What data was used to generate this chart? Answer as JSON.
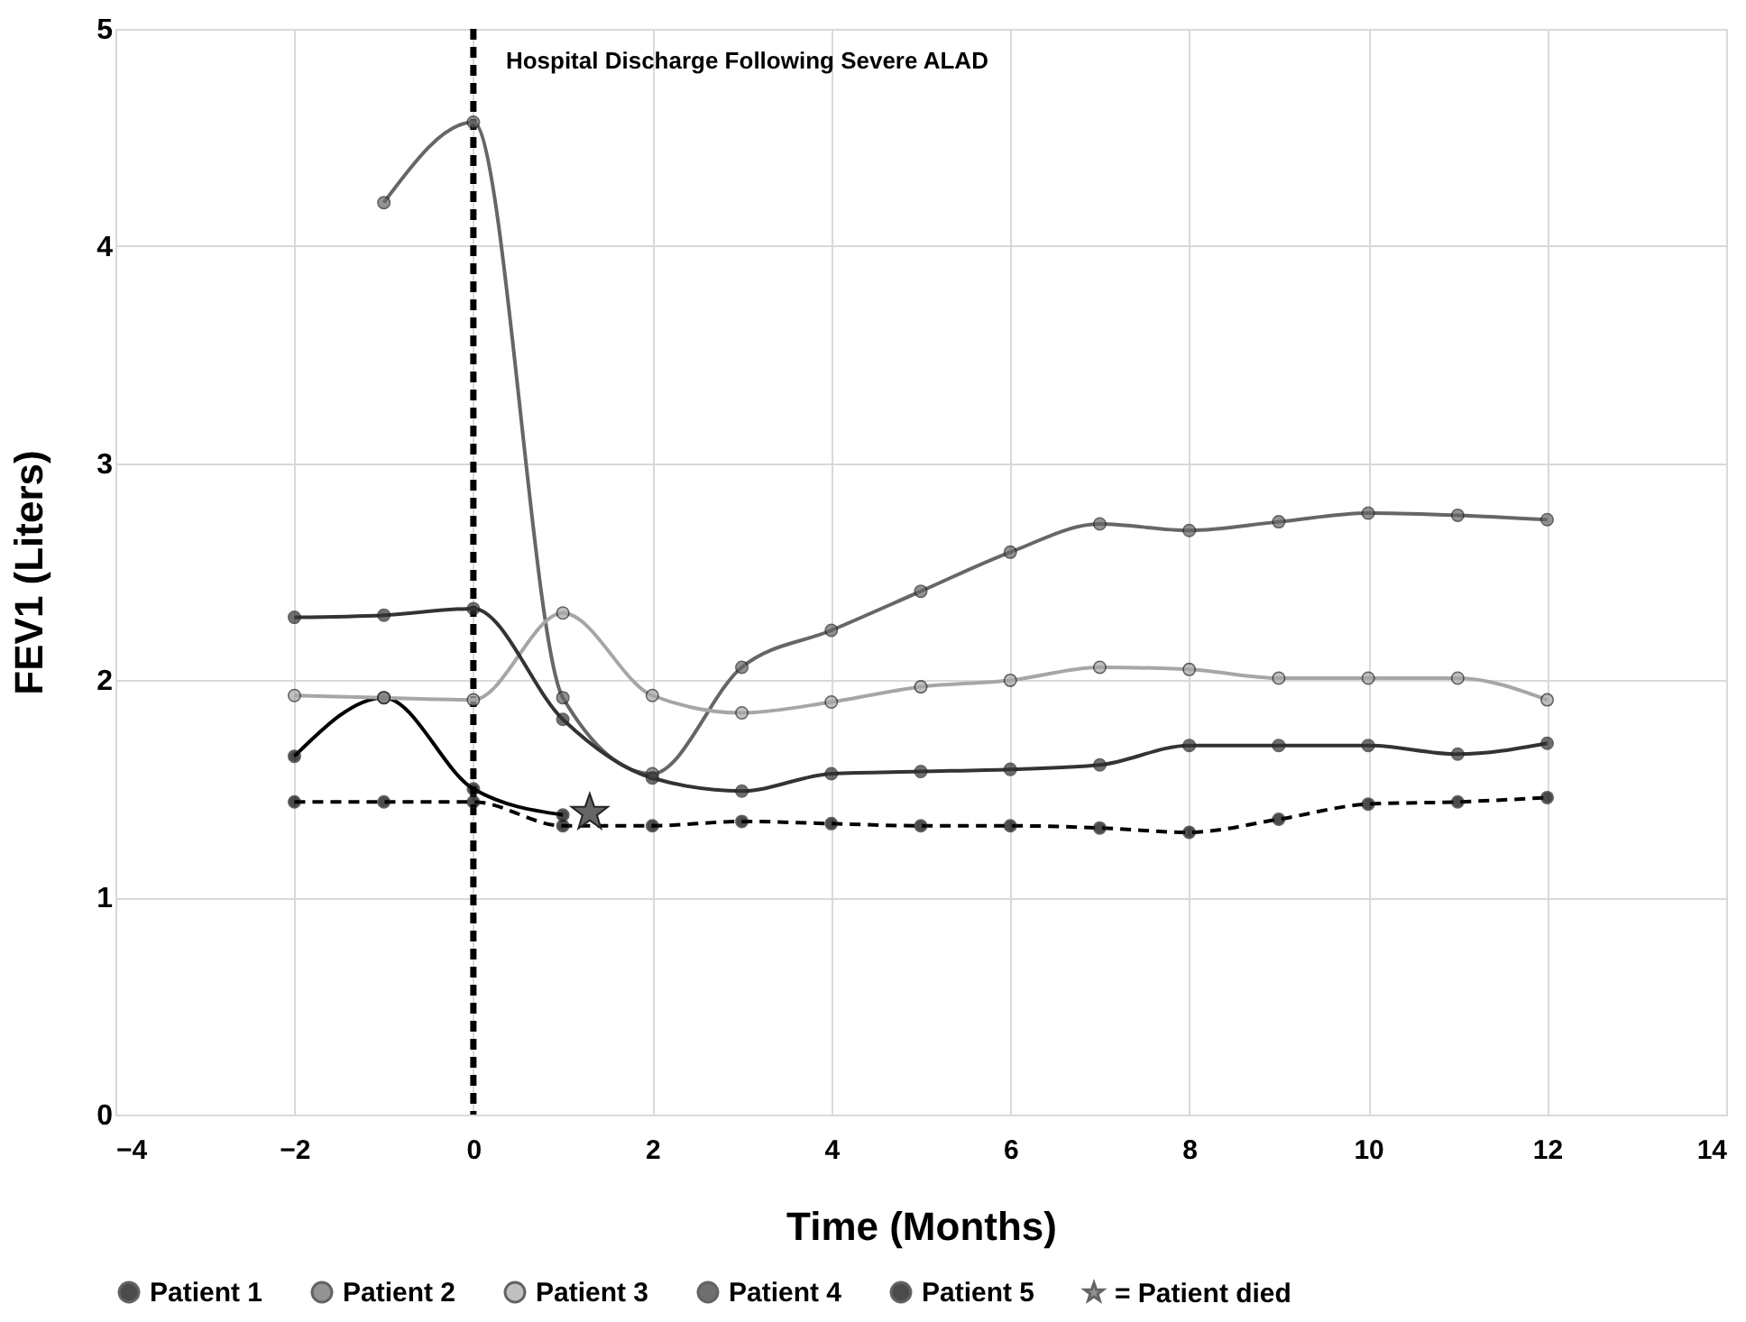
{
  "chart_data": {
    "type": "line",
    "xlabel": "Time (Months)",
    "ylabel": "FEV1 (Liters)",
    "x": [
      -2,
      -1,
      0,
      1,
      2,
      3,
      4,
      5,
      6,
      7,
      8,
      9,
      10,
      11,
      12
    ],
    "series": [
      {
        "name": "Patient 1",
        "color": "#000000",
        "line_style": "solid",
        "values": [
          1.65,
          1.92,
          1.5,
          1.38,
          null,
          null,
          null,
          null,
          null,
          null,
          null,
          null,
          null,
          null,
          null
        ]
      },
      {
        "name": "Patient 2",
        "color": "#666666",
        "line_style": "solid",
        "values": [
          null,
          4.2,
          4.57,
          1.92,
          1.57,
          2.06,
          2.23,
          2.41,
          2.59,
          2.72,
          2.69,
          2.73,
          2.77,
          2.76,
          2.74
        ]
      },
      {
        "name": "Patient 3",
        "color": "#a6a6a6",
        "line_style": "solid",
        "values": [
          1.93,
          1.92,
          1.91,
          2.31,
          1.93,
          1.85,
          1.9,
          1.97,
          2.0,
          2.06,
          2.05,
          2.01,
          2.01,
          2.01,
          1.91
        ]
      },
      {
        "name": "Patient 4",
        "color": "#333333",
        "line_style": "solid",
        "values": [
          2.29,
          2.3,
          2.33,
          1.82,
          1.55,
          1.49,
          1.57,
          1.58,
          1.59,
          1.61,
          1.7,
          1.7,
          1.7,
          1.66,
          1.71
        ]
      },
      {
        "name": "Patient 5",
        "color": "#000000",
        "line_style": "dashed",
        "values": [
          1.44,
          1.44,
          1.44,
          1.33,
          1.33,
          1.35,
          1.34,
          1.33,
          1.33,
          1.32,
          1.3,
          1.36,
          1.43,
          1.44,
          1.46
        ]
      },
      {
        "name": "= Patient died",
        "type": "scatter",
        "marker": "star",
        "color": "#666666",
        "x": [
          1.3
        ],
        "values": [
          1.39
        ]
      }
    ],
    "marker": "circle",
    "ref_lines": [
      {
        "axis": "x",
        "value": 0,
        "label": "Hospital Discharge Following Severe ALAD",
        "color": "#000000",
        "line_style": "dashed"
      }
    ],
    "xlim": [
      -4,
      14
    ],
    "xticks": [
      -4,
      -2,
      0,
      2,
      4,
      6,
      8,
      10,
      12,
      14
    ],
    "ylim": [
      0,
      5
    ],
    "yticks": [
      0,
      1,
      2,
      3,
      4,
      5
    ],
    "grid": true,
    "legend": "bottom"
  }
}
